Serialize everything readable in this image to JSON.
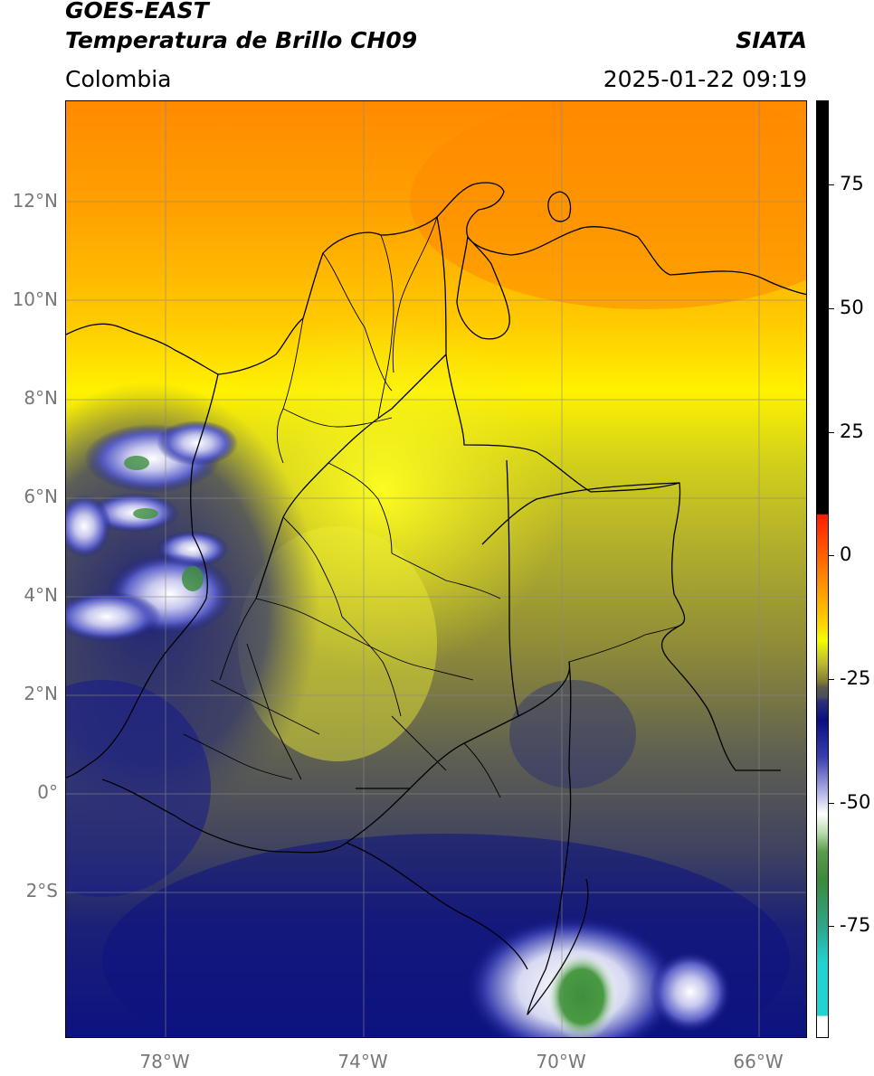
{
  "header": {
    "satellite": "GOES-EAST",
    "product": "Temperatura de Brillo CH09",
    "region": "Colombia",
    "brand": "SIATA",
    "datetime": "2025-01-22 09:19"
  },
  "map": {
    "lon_range": [
      -80,
      -65
    ],
    "lat_range": [
      -5,
      14
    ],
    "lat_labels": [
      "12°N",
      "10°N",
      "8°N",
      "6°N",
      "4°N",
      "2°N",
      "0°",
      "2°S"
    ],
    "lon_labels": [
      "78°W",
      "74°W",
      "70°W",
      "66°W"
    ]
  },
  "colorbar": {
    "tick_labels": [
      "75",
      "50",
      "25",
      "0",
      "-25",
      "-50",
      "-75"
    ],
    "colors": {
      "cold_high": "#f2ff00",
      "warm_orange": "#ff8c00",
      "olive": "#7b7a2f",
      "slate": "#4c4f5d",
      "navy": "#0a0f80",
      "white": "#ffffff",
      "green": "#3b8a3b",
      "cyan": "#22d3d3",
      "red": "#ff1c00",
      "black": "#000000"
    }
  }
}
